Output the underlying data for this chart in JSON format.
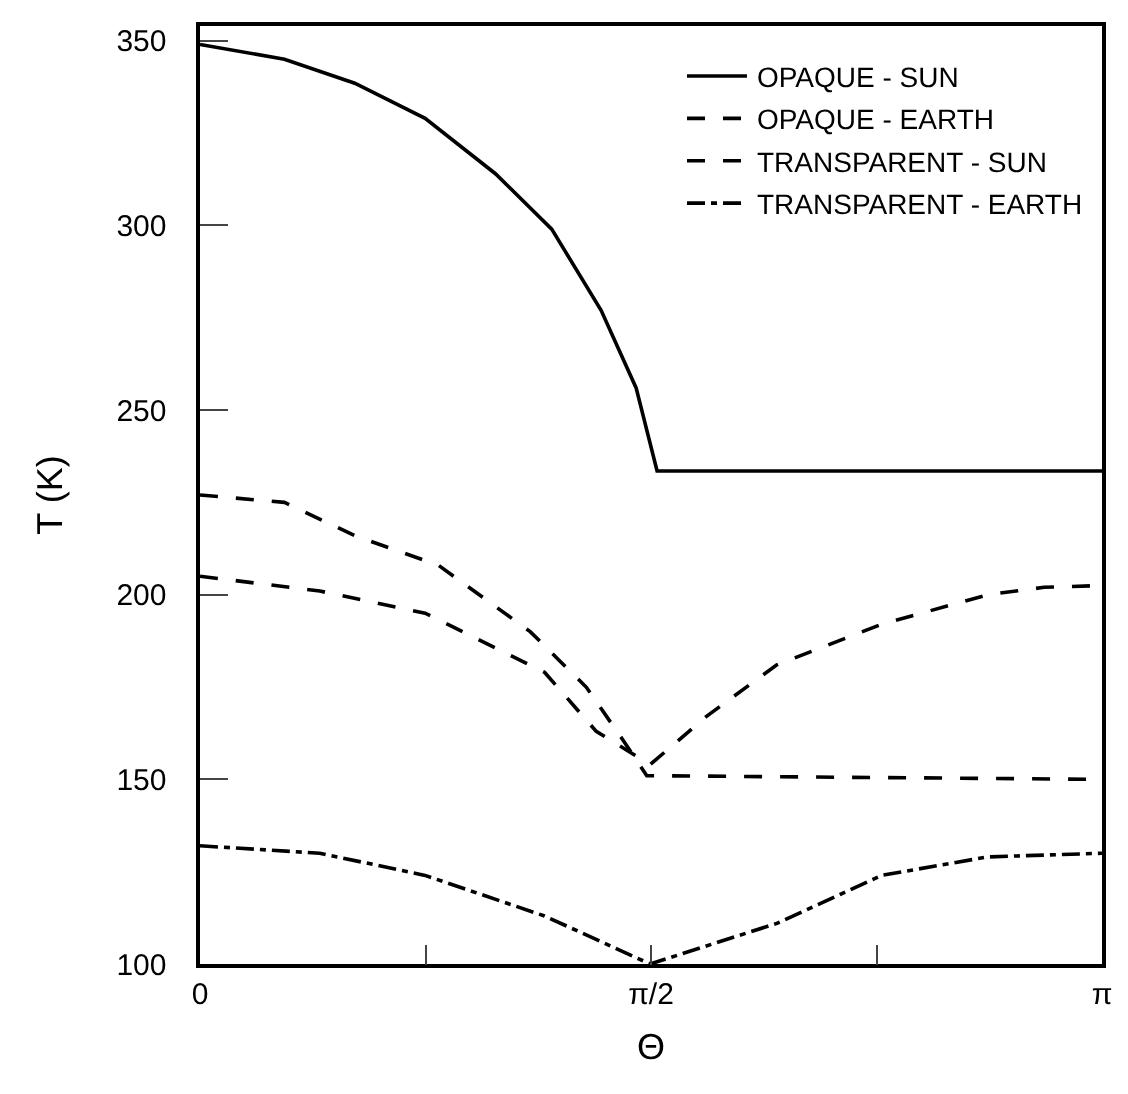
{
  "chart_data": {
    "type": "line",
    "xlabel": "Θ",
    "ylabel": "T (K)",
    "xlim": [
      0,
      3.1416
    ],
    "ylim": [
      100,
      354
    ],
    "xticks": [
      0,
      {
        "value": 0.7854,
        "label": null
      },
      {
        "value": 1.5708,
        "label": "π/2"
      },
      {
        "value": 2.3562,
        "label": null
      },
      {
        "value": 3.1416,
        "label": "π"
      }
    ],
    "yticks": [
      100,
      150,
      200,
      250,
      300,
      350
    ],
    "grid": false,
    "legend": "top right",
    "marker": "none",
    "series": [
      {
        "name": "OPAQUE - SUN",
        "color": "#000000",
        "line_style": "solid",
        "x": [
          0,
          0.294,
          0.539,
          0.784,
          1.029,
          1.225,
          1.397,
          1.519,
          1.592,
          3.1416
        ],
        "values": [
          349,
          345,
          338.5,
          329,
          314,
          299,
          277,
          256,
          233.5,
          233.5
        ]
      },
      {
        "name": "OPAQUE - EARTH",
        "color": "#000000",
        "line_style": "dashed",
        "x": [
          0,
          0.294,
          0.539,
          0.83,
          1.15,
          1.345,
          1.47,
          1.556,
          3.1416
        ],
        "values": [
          227,
          225,
          216,
          208,
          190,
          175,
          161,
          151,
          150
        ]
      },
      {
        "name": "TRANSPARENT - SUN",
        "color": "#000000",
        "line_style": "dashed",
        "x": [
          0,
          0.417,
          0.784,
          1.2,
          1.38,
          1.568,
          1.763,
          2.009,
          2.374,
          2.744,
          2.94,
          3.1416
        ],
        "values": [
          205,
          201,
          195,
          179,
          163,
          154,
          167,
          181,
          192,
          200,
          202,
          202.5
        ]
      },
      {
        "name": "TRANSPARENT - EARTH",
        "color": "#000000",
        "line_style": "dashdot",
        "x": [
          0,
          0.417,
          0.784,
          1.2,
          1.568,
          2.009,
          2.374,
          2.744,
          3.1416
        ],
        "values": [
          132,
          130,
          124,
          113,
          100,
          111,
          124,
          129,
          130
        ]
      }
    ]
  }
}
